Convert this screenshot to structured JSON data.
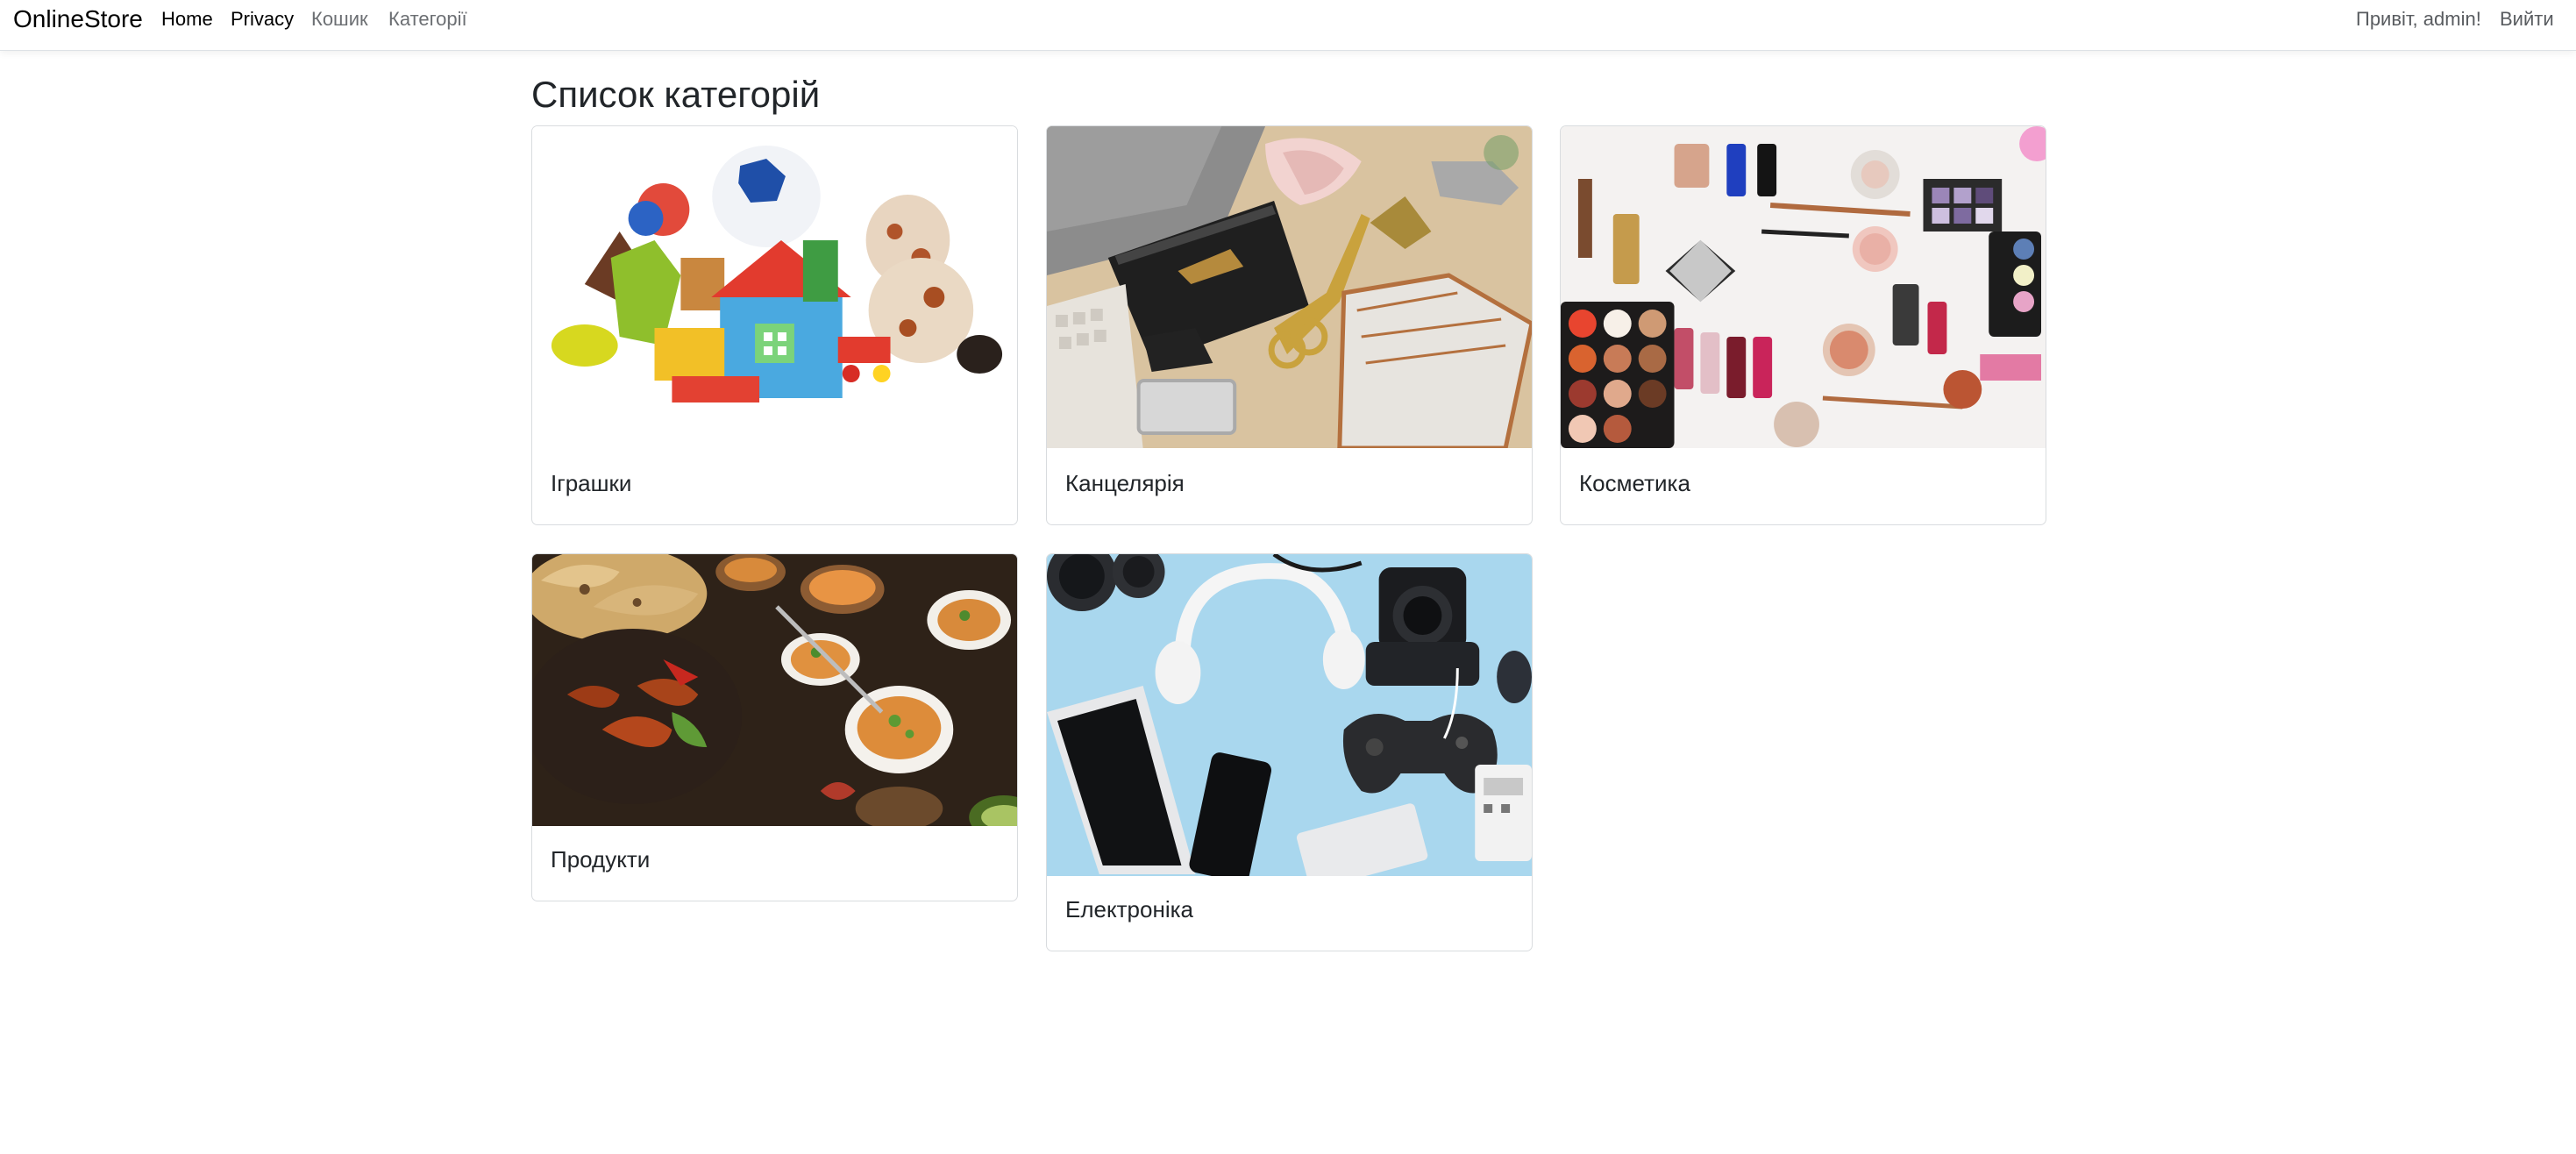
{
  "navbar": {
    "brand": "OnlineStore",
    "links": [
      {
        "label": "Home"
      },
      {
        "label": "Privacy"
      },
      {
        "label": "Кошик"
      },
      {
        "label": "Категорії"
      }
    ],
    "greeting": "Привіт, admin!",
    "logout": "Вийти"
  },
  "page": {
    "title": "Список категорій"
  },
  "categories": [
    {
      "name": "Іграшки",
      "image": "toys-image"
    },
    {
      "name": "Канцелярія",
      "image": "stationery-image"
    },
    {
      "name": "Косметика",
      "image": "cosmetics-image"
    },
    {
      "name": "Продукти",
      "image": "food-image"
    },
    {
      "name": "Електроніка",
      "image": "electronics-image"
    }
  ]
}
